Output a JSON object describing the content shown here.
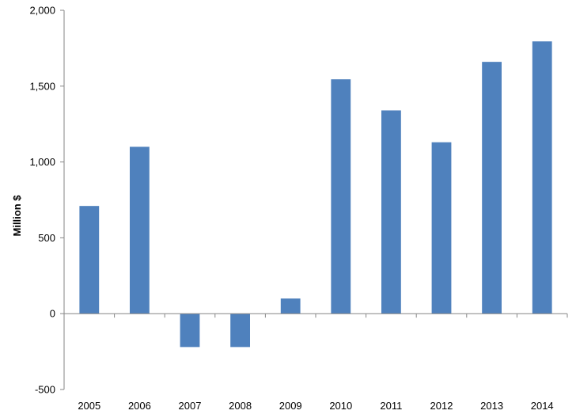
{
  "chart_data": {
    "type": "bar",
    "title": "",
    "xlabel": "",
    "ylabel": "Million $",
    "categories": [
      "2005",
      "2006",
      "2007",
      "2008",
      "2009",
      "2010",
      "2011",
      "2012",
      "2013",
      "2014"
    ],
    "values": [
      710,
      1100,
      -220,
      -220,
      100,
      1545,
      1340,
      1130,
      1660,
      1795
    ],
    "ylim": [
      -500,
      2000
    ],
    "yticks": [
      -500,
      0,
      500,
      1000,
      1500,
      2000
    ],
    "ytick_labels": [
      "-500",
      "0",
      "500",
      "1,000",
      "1,500",
      "2,000"
    ],
    "grid": false,
    "legend": "none",
    "bar_color": "#4F81BD",
    "axis_color": "#868686"
  }
}
